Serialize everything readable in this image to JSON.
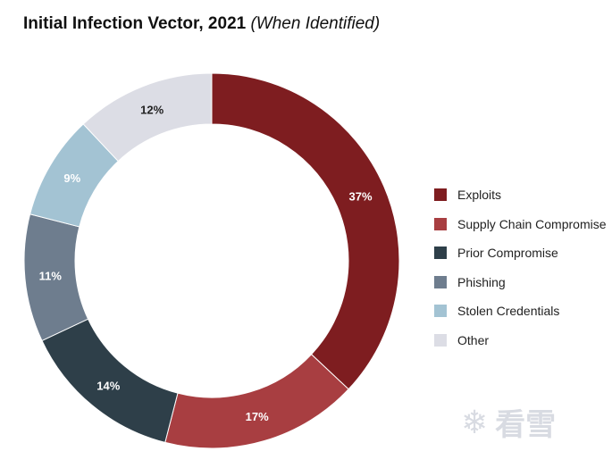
{
  "header": {
    "title": "Initial Infection Vector, 2021",
    "subtitle": "(When Identified)"
  },
  "chart_data": {
    "type": "pie",
    "title": "Initial Infection Vector, 2021",
    "subtitle": "(When Identified)",
    "donut": true,
    "legend_position": "right",
    "categories": [
      "Exploits",
      "Supply Chain Compromise",
      "Prior Compromise",
      "Phishing",
      "Stolen Credentials",
      "Other"
    ],
    "values": [
      37,
      17,
      14,
      11,
      9,
      12
    ],
    "labels": [
      "37%",
      "17%",
      "14%",
      "11%",
      "9%",
      "12%"
    ],
    "colors": [
      "#7e1d20",
      "#a83e41",
      "#2e3f49",
      "#6e7d8e",
      "#a3c3d3",
      "#dcdde5"
    ],
    "label_colors": [
      "#ffffff",
      "#ffffff",
      "#ffffff",
      "#ffffff",
      "#ffffff",
      "#222222"
    ]
  },
  "watermark": {
    "icon": "snowflake-icon",
    "text": "看雪"
  }
}
